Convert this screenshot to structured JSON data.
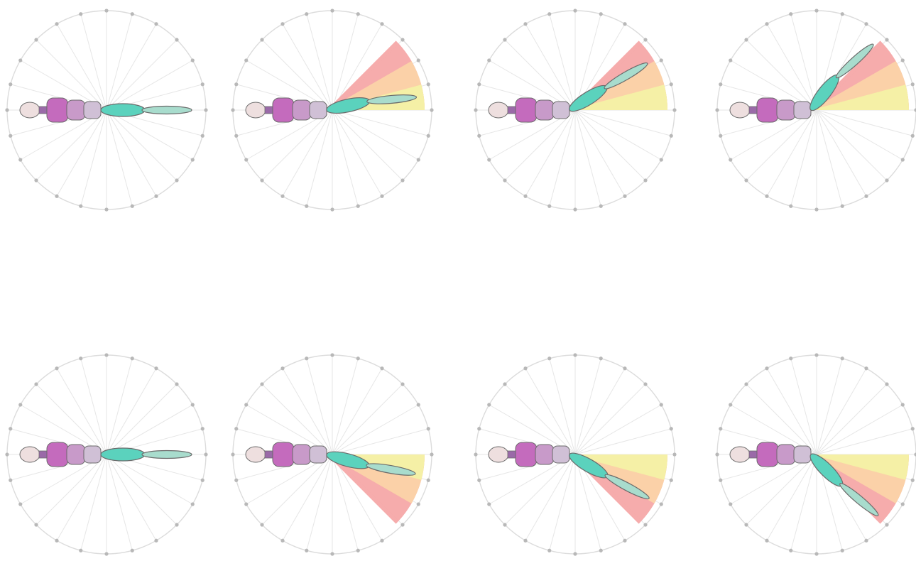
{
  "figure": {
    "description_domain": "radial-joint-angle-diagram",
    "spoke_count": 24,
    "colors": {
      "ring": "#dcdcdc",
      "spoke": "#e6e6e6",
      "tick_dot": "#b8b8b8",
      "head": "#eedfdf",
      "neck": "#9a6aa8",
      "body_1": "#c46bbd",
      "body_2": "#c89ac9",
      "body_3": "#d0c0d6",
      "limb_1": "#5bd2bd",
      "limb_2": "#a8dccd",
      "outline": "#6b6b6b",
      "wedge_far": "#f6a8a8",
      "wedge_mid": "#fbd3a8",
      "wedge_near": "#f4f1a5"
    },
    "panels": [
      {
        "name": "panel-row1-col1",
        "limb_angle_deg": 0,
        "joint2_angle_deg": 0,
        "wedges": false
      },
      {
        "name": "panel-row1-col2",
        "limb_angle_deg": -12,
        "joint2_angle_deg": -5,
        "wedges": true
      },
      {
        "name": "panel-row1-col3",
        "limb_angle_deg": -32,
        "joint2_angle_deg": -30,
        "wedges": true
      },
      {
        "name": "panel-row1-col4",
        "limb_angle_deg": -52,
        "joint2_angle_deg": -42,
        "wedges": true
      },
      {
        "name": "panel-row2-col1",
        "limb_angle_deg": 0,
        "joint2_angle_deg": 0,
        "wedges": false
      },
      {
        "name": "panel-row2-col2",
        "limb_angle_deg": 15,
        "joint2_angle_deg": 10,
        "wedges": true,
        "below": true
      },
      {
        "name": "panel-row2-col3",
        "limb_angle_deg": 30,
        "joint2_angle_deg": 28,
        "wedges": true,
        "below": true
      },
      {
        "name": "panel-row2-col4",
        "limb_angle_deg": 45,
        "joint2_angle_deg": 40,
        "wedges": true,
        "below": true
      }
    ]
  }
}
